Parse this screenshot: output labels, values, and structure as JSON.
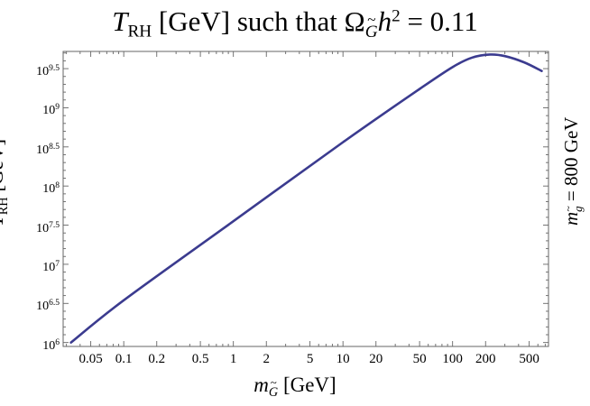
{
  "chart_data": {
    "type": "line",
    "title": {
      "var": "T",
      "var_sub": "RH",
      "unit": " [GeV] such that ",
      "omega": "Ω",
      "omega_sub": "G",
      "h": "h",
      "h_sup": "2",
      "eq": " = 0.11"
    },
    "xlabel": {
      "var": "m",
      "var_sub": "G",
      "unit": " [GeV]"
    },
    "ylabel": {
      "var": "T",
      "var_sub": "RH",
      "unit": " [GeV]"
    },
    "side_label": {
      "var": "m",
      "var_sub": "g",
      "eq": " = 800 GeV"
    },
    "x_scale": "log",
    "y_scale": "log",
    "xlim": [
      0.028,
      750
    ],
    "ylim_log10": [
      5.95,
      9.72
    ],
    "x_ticks": [
      {
        "value": 0.05,
        "label": "0.05"
      },
      {
        "value": 0.1,
        "label": "0.1"
      },
      {
        "value": 0.2,
        "label": "0.2"
      },
      {
        "value": 0.5,
        "label": "0.5"
      },
      {
        "value": 1,
        "label": "1"
      },
      {
        "value": 2,
        "label": "2"
      },
      {
        "value": 5,
        "label": "5"
      },
      {
        "value": 10,
        "label": "10"
      },
      {
        "value": 20,
        "label": "20"
      },
      {
        "value": 50,
        "label": "50"
      },
      {
        "value": 100,
        "label": "100"
      },
      {
        "value": 200,
        "label": "200"
      },
      {
        "value": 500,
        "label": "500"
      }
    ],
    "y_ticks": [
      {
        "log10": 6,
        "base": "10",
        "exp": "6"
      },
      {
        "log10": 6.5,
        "base": "10",
        "exp": "6.5"
      },
      {
        "log10": 7,
        "base": "10",
        "exp": "7"
      },
      {
        "log10": 7.5,
        "base": "10",
        "exp": "7.5"
      },
      {
        "log10": 8,
        "base": "10",
        "exp": "8"
      },
      {
        "log10": 8.5,
        "base": "10",
        "exp": "8.5"
      },
      {
        "log10": 9,
        "base": "10",
        "exp": "9"
      },
      {
        "log10": 9.5,
        "base": "10",
        "exp": "9.5"
      }
    ],
    "grid": false,
    "frame": true,
    "series": [
      {
        "color": "#3b3b8f",
        "points": [
          {
            "x": 0.033,
            "log10_y": 6.0
          },
          {
            "x": 0.1,
            "log10_y": 6.54
          },
          {
            "x": 1,
            "log10_y": 7.55
          },
          {
            "x": 10,
            "log10_y": 8.56
          },
          {
            "x": 50,
            "log10_y": 9.24
          },
          {
            "x": 100,
            "log10_y": 9.52
          },
          {
            "x": 150,
            "log10_y": 9.64
          },
          {
            "x": 220,
            "log10_y": 9.68
          },
          {
            "x": 300,
            "log10_y": 9.66
          },
          {
            "x": 450,
            "log10_y": 9.58
          },
          {
            "x": 650,
            "log10_y": 9.47
          }
        ]
      }
    ]
  }
}
